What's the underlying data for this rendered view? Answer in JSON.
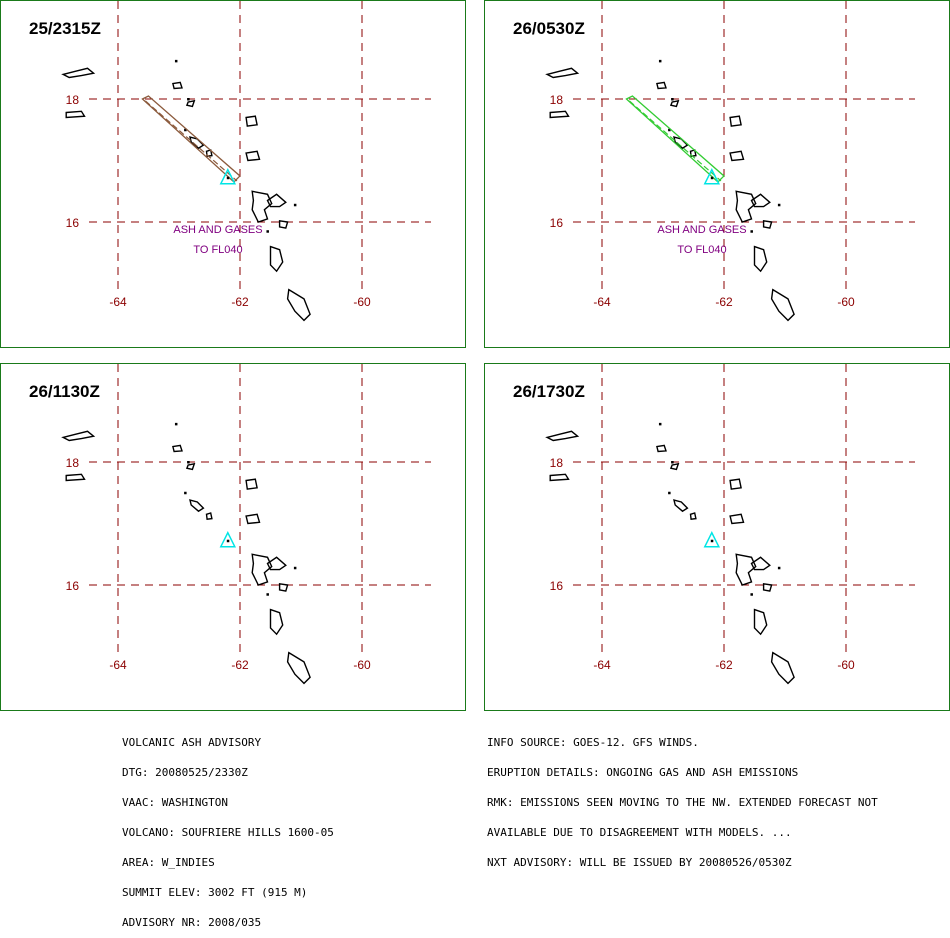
{
  "panels": [
    {
      "time": "25/2315Z",
      "plume_color": "#8b5a3c",
      "show_plume": true,
      "show_ash_text": true
    },
    {
      "time": "26/0530Z",
      "plume_color": "#33cc33",
      "show_plume": true,
      "show_ash_text": true
    },
    {
      "time": "26/1130Z",
      "plume_color": "",
      "show_plume": false,
      "show_ash_text": false
    },
    {
      "time": "26/1730Z",
      "plume_color": "",
      "show_plume": false,
      "show_ash_text": false
    }
  ],
  "map": {
    "lat_labels": [
      "18",
      "16"
    ],
    "lon_labels": [
      "-64",
      "-62",
      "-60"
    ],
    "ash_text_line1": "ASH AND GASES",
    "ash_text_line2": "TO FL040",
    "volcano_icon": "triangle-icon",
    "volcano_color": "#00e5e5",
    "grid_color": "#8b0000",
    "coast_color": "#000000"
  },
  "advisory_left": [
    "VOLCANIC ASH ADVISORY",
    "DTG: 20080525/2330Z",
    "VAAC: WASHINGTON",
    "VOLCANO: SOUFRIERE HILLS 1600-05",
    "AREA: W_INDIES",
    "SUMMIT ELEV: 3002 FT (915 M)",
    "ADVISORY NR: 2008/035"
  ],
  "advisory_right": [
    "INFO SOURCE: GOES-12. GFS WINDS.",
    "ERUPTION DETAILS: ONGOING GAS AND ASH EMISSIONS",
    "RMK: EMISSIONS SEEN MOVING TO THE NW. EXTENDED FORECAST NOT",
    "AVAILABLE DUE TO DISAGREEMENT WITH MODELS. ...",
    "NXT ADVISORY: WILL BE ISSUED BY 20080526/0530Z"
  ]
}
